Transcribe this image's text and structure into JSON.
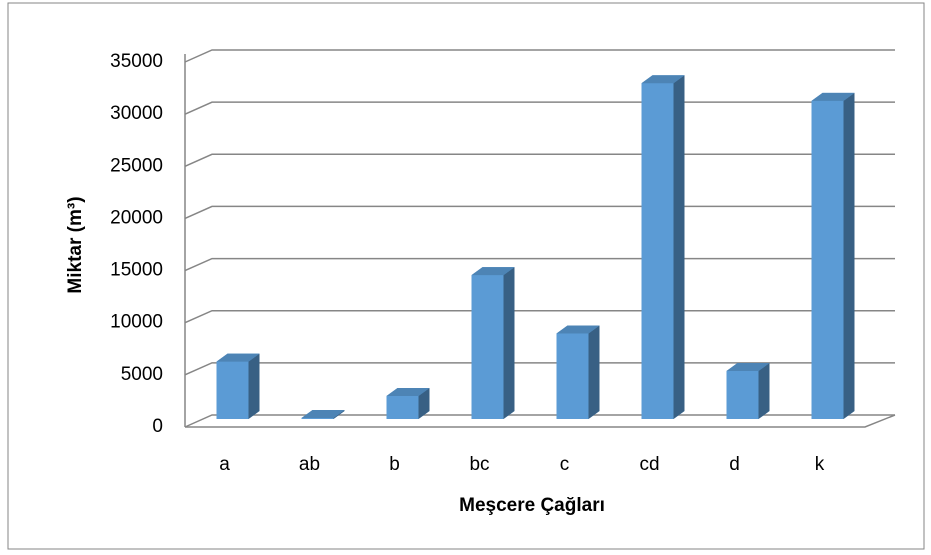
{
  "chart_data": {
    "type": "bar",
    "x_label": "Meşcere Çağları",
    "y_label": "Miktar (m³)",
    "categories": [
      "a",
      "ab",
      "b",
      "bc",
      "c",
      "cd",
      "d",
      "k"
    ],
    "values": [
      5500,
      100,
      2200,
      13800,
      8200,
      32200,
      4600,
      30500
    ],
    "color": "#5b9bd5",
    "ylim": [
      0,
      35000
    ],
    "yticks": [
      0,
      5000,
      10000,
      15000,
      20000,
      25000,
      30000,
      35000
    ],
    "grid": true
  }
}
